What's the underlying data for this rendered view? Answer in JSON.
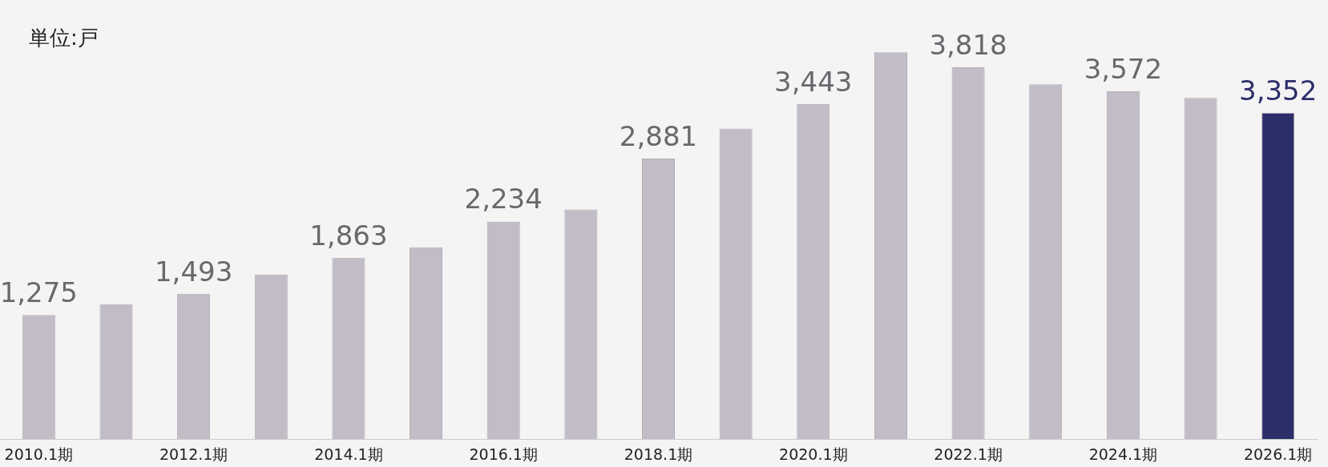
{
  "chart_data": {
    "type": "bar",
    "annotations": [
      "単位:戸"
    ],
    "categories": [
      "2010.1期",
      null,
      "2012.1期",
      null,
      "2014.1期",
      null,
      "2016.1期",
      null,
      "2018.1期",
      null,
      "2020.1期",
      null,
      "2022.1期",
      null,
      "2024.1期",
      null,
      "2026.1期"
    ],
    "values": [
      1275,
      1385,
      1493,
      1690,
      1863,
      1970,
      2234,
      2358,
      2881,
      3190,
      3443,
      3974,
      3818,
      3644,
      3572,
      3504,
      3352
    ],
    "value_labels": [
      "1,275",
      null,
      "1,493",
      null,
      "1,863",
      null,
      "2,234",
      null,
      "2,881",
      null,
      "3,443",
      null,
      "3,818",
      null,
      "3,572",
      null,
      "3,352"
    ],
    "colors": [
      "#c2bcc6",
      "#c2bcc6",
      "#c2bcc6",
      "#c2bcc6",
      "#c2bcc6",
      "#c2bcc6",
      "#c2bcc6",
      "#c2bcc6",
      "#c2bcc6",
      "#c2bcc6",
      "#c2bcc6",
      "#c2bcc6",
      "#c2bcc6",
      "#c2bcc6",
      "#c2bcc6",
      "#c2bcc6",
      "#2c2e6a"
    ],
    "grid": false,
    "legend": false
  }
}
